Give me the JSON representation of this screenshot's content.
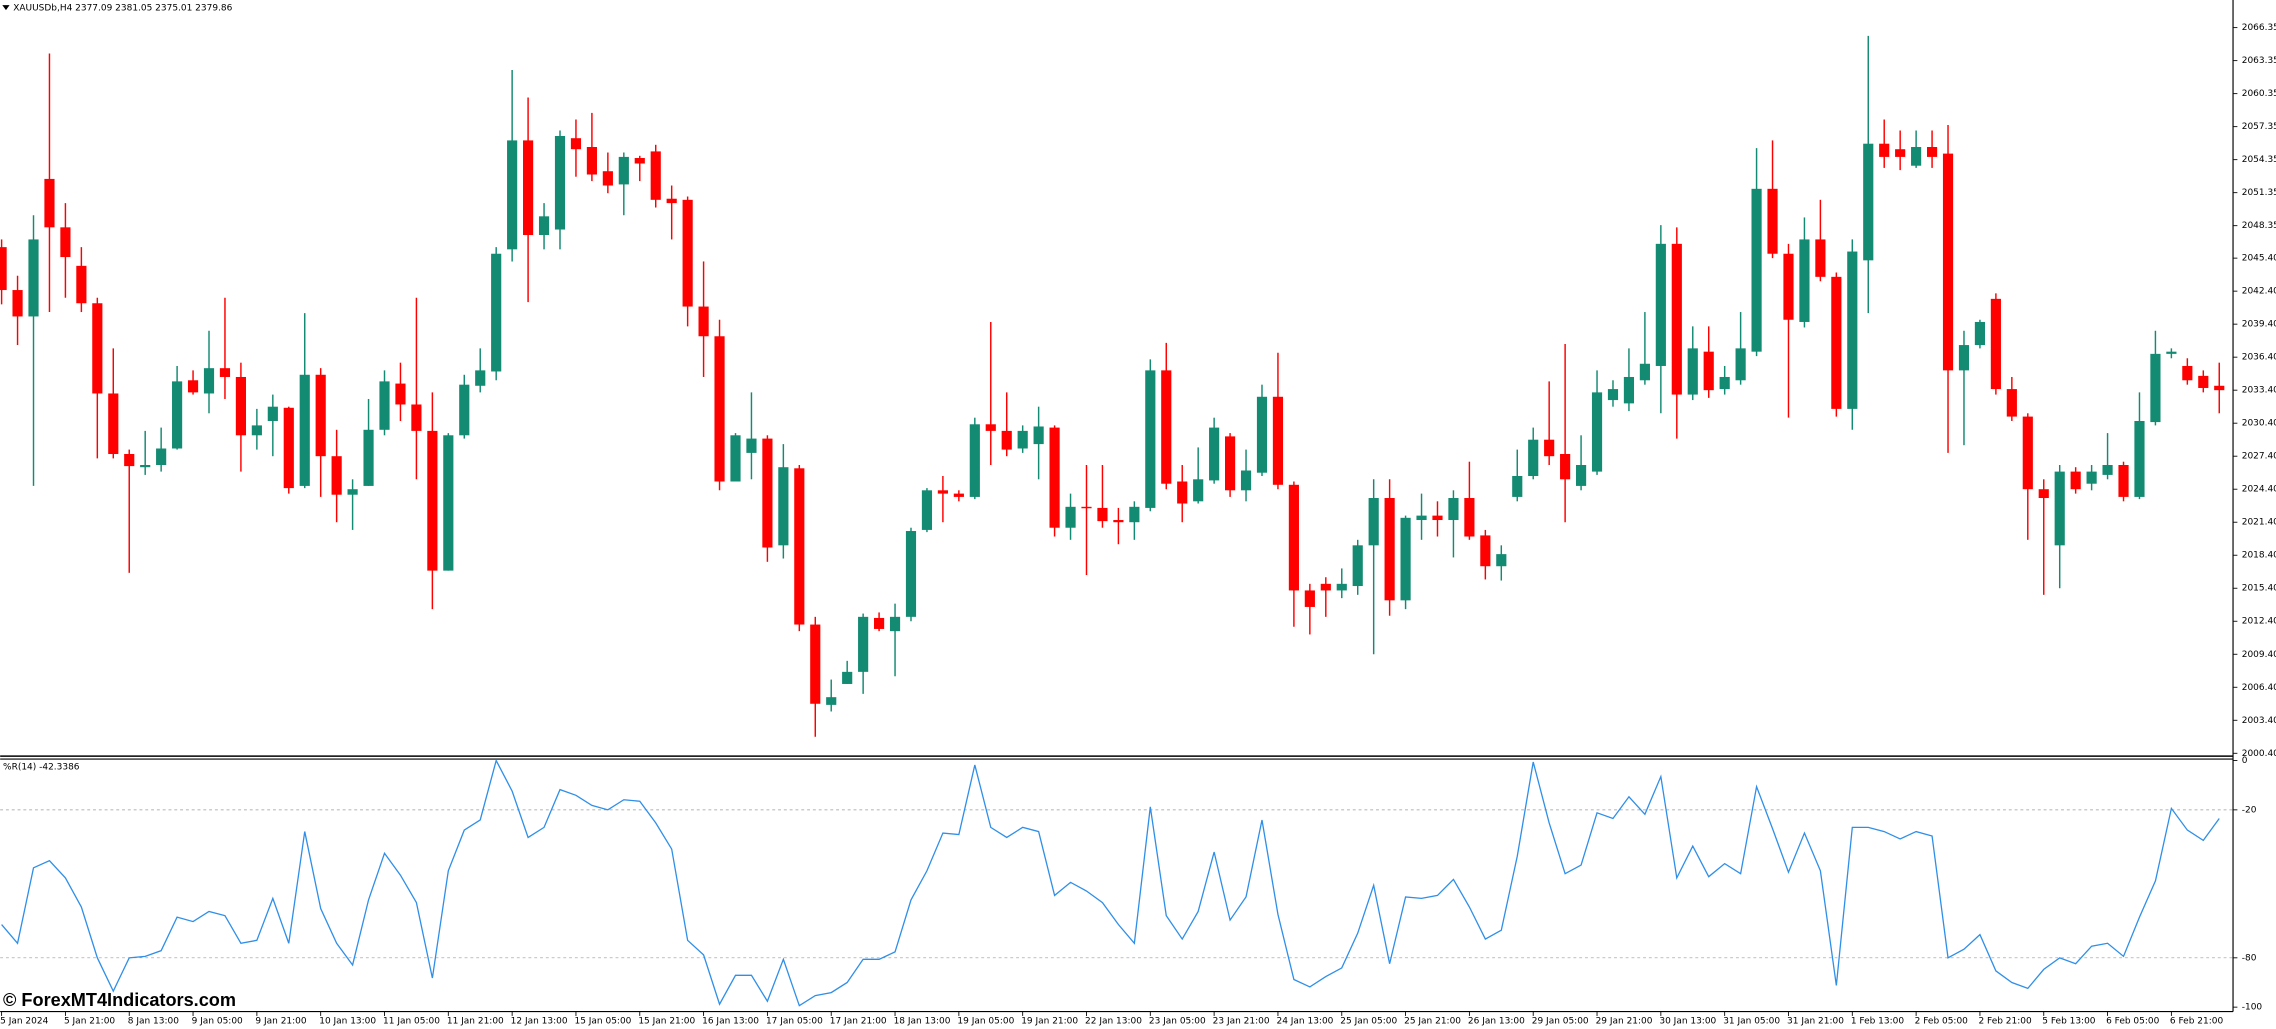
{
  "chart_data": [
    {
      "type": "candlestick",
      "title": "XAUUSDb,H4  2377.09 2381.05 2375.01 2379.86",
      "watermark": "© ForexMT4Indicators.com",
      "up_color": "#138a72",
      "down_color": "#ff0000",
      "categories": [
        "5 Jan 2024",
        null,
        null,
        null,
        "5 Jan 21:00",
        null,
        null,
        null,
        "8 Jan 13:00",
        null,
        null,
        null,
        "9 Jan 05:00",
        null,
        null,
        null,
        "9 Jan 21:00",
        null,
        null,
        null,
        "10 Jan 13:00",
        null,
        null,
        null,
        "11 Jan 05:00",
        null,
        null,
        null,
        "11 Jan 21:00",
        null,
        null,
        null,
        "12 Jan 13:00",
        null,
        null,
        null,
        "15 Jan 05:00",
        null,
        null,
        null,
        "15 Jan 21:00",
        null,
        null,
        null,
        "16 Jan 13:00",
        null,
        null,
        null,
        "17 Jan 05:00",
        null,
        null,
        null,
        "17 Jan 21:00",
        null,
        null,
        null,
        "18 Jan 13:00",
        null,
        null,
        null,
        "19 Jan 05:00",
        null,
        null,
        null,
        "19 Jan 21:00",
        null,
        null,
        null,
        "22 Jan 13:00",
        null,
        null,
        null,
        "23 Jan 05:00",
        null,
        null,
        null,
        "23 Jan 21:00",
        null,
        null,
        null,
        "24 Jan 13:00",
        null,
        null,
        null,
        "25 Jan 05:00",
        null,
        null,
        null,
        "25 Jan 21:00",
        null,
        null,
        null,
        "26 Jan 13:00",
        null,
        null,
        null,
        "29 Jan 05:00",
        null,
        null,
        null,
        "29 Jan 21:00",
        null,
        null,
        null,
        "30 Jan 13:00",
        null,
        null,
        null,
        "31 Jan 05:00",
        null,
        null,
        null,
        "31 Jan 21:00",
        null,
        null,
        null,
        "1 Feb 13:00",
        null,
        null,
        null,
        "2 Feb 05:00",
        null,
        null,
        null,
        "2 Feb 21:00",
        null,
        null,
        null,
        "5 Feb 13:00",
        null,
        null,
        null,
        "6 Feb 05:00",
        null,
        null,
        null,
        "6 Feb 21:00",
        null,
        null,
        null
      ],
      "open": [
        2046.4,
        2042.5,
        2040.1,
        2052.6,
        2048.2,
        2044.7,
        2041.3,
        2033.1,
        2027.6,
        2026.4,
        2026.6,
        2028.1,
        2034.3,
        2033.1,
        2035.4,
        2034.6,
        2029.3,
        2030.6,
        2031.8,
        2024.7,
        2034.8,
        2027.4,
        2023.9,
        2024.7,
        2029.8,
        2034.0,
        2032.1,
        2029.7,
        2017.0,
        2029.3,
        2033.8,
        2035.1,
        2046.2,
        2056.1,
        2047.5,
        2048.0,
        2056.3,
        2055.5,
        2053.3,
        2052.1,
        2054.5,
        2055.1,
        2050.8,
        2050.7,
        2041.0,
        2038.3,
        2025.1,
        2027.7,
        2029.0,
        2019.3,
        2026.3,
        2012.1,
        2004.8,
        2006.7,
        2007.8,
        2012.7,
        2011.5,
        2012.8,
        2020.7,
        2024.3,
        2024.0,
        2023.7,
        2030.3,
        2029.7,
        2028.1,
        2028.5,
        2030.0,
        2020.9,
        2022.8,
        2022.7,
        2021.6,
        2021.4,
        2022.7,
        2035.2,
        2025.1,
        2023.3,
        2025.2,
        2029.2,
        2024.3,
        2025.9,
        2032.8,
        2024.8,
        2015.2,
        2015.8,
        2015.2,
        2015.6,
        2019.3,
        2023.6,
        2014.3,
        2021.6,
        2022.0,
        2021.6,
        2023.6,
        2020.2,
        2017.4,
        2023.7,
        2025.6,
        2028.9,
        2027.6,
        2024.7,
        2026.0,
        2032.5,
        2032.2,
        2034.3,
        2035.6,
        2046.7,
        2033.0,
        2036.9,
        2033.5,
        2034.3,
        2036.9,
        2051.7,
        2045.8,
        2039.6,
        2047.1,
        2043.7,
        2031.7,
        2045.2,
        2055.8,
        2055.3,
        2053.8,
        2055.5,
        2054.9,
        2035.2,
        2037.5,
        2041.7,
        2033.5,
        2031.0,
        2024.4,
        2019.3,
        2026.0,
        2024.9,
        2025.7,
        2026.6,
        2023.7,
        2030.5,
        2036.7,
        2035.6,
        2034.7,
        2033.8
      ],
      "high": [
        2047.1,
        2043.8,
        2049.3,
        2064.0,
        2050.4,
        2046.4,
        2041.8,
        2037.2,
        2028.0,
        2029.7,
        2030.0,
        2035.6,
        2035.2,
        2038.8,
        2041.8,
        2035.9,
        2031.7,
        2033.0,
        2031.9,
        2040.4,
        2035.4,
        2029.8,
        2025.3,
        2032.6,
        2035.2,
        2035.9,
        2041.8,
        2033.2,
        2029.5,
        2034.8,
        2037.2,
        2046.4,
        2062.5,
        2060.0,
        2050.4,
        2057.0,
        2058.0,
        2058.6,
        2055.0,
        2055.0,
        2054.7,
        2055.7,
        2052.0,
        2051.0,
        2045.1,
        2039.8,
        2029.5,
        2033.2,
        2029.3,
        2028.5,
        2026.6,
        2012.8,
        2007.1,
        2008.8,
        2013.1,
        2013.2,
        2014.0,
        2020.9,
        2024.5,
        2025.6,
        2024.3,
        2030.9,
        2039.6,
        2033.2,
        2030.2,
        2031.9,
        2030.2,
        2024.0,
        2026.6,
        2026.6,
        2022.7,
        2023.3,
        2036.2,
        2037.7,
        2026.6,
        2028.2,
        2030.9,
        2029.5,
        2028.0,
        2033.9,
        2036.8,
        2025.1,
        2015.8,
        2016.4,
        2017.2,
        2019.8,
        2025.3,
        2025.3,
        2022.0,
        2024.0,
        2023.3,
        2024.3,
        2026.9,
        2020.7,
        2019.3,
        2028.0,
        2030.0,
        2034.2,
        2037.6,
        2029.3,
        2035.2,
        2034.3,
        2037.2,
        2040.5,
        2048.4,
        2048.2,
        2039.2,
        2039.2,
        2035.6,
        2040.5,
        2055.4,
        2056.1,
        2046.7,
        2049.1,
        2050.7,
        2044.1,
        2047.1,
        2065.6,
        2058.0,
        2057.0,
        2057.0,
        2057.0,
        2057.5,
        2038.8,
        2039.8,
        2042.2,
        2034.6,
        2031.3,
        2025.3,
        2026.6,
        2026.4,
        2026.6,
        2029.5,
        2026.9,
        2033.2,
        2038.8,
        2037.2,
        2036.3,
        2035.2,
        2035.9
      ],
      "low": [
        2041.2,
        2037.5,
        2024.7,
        2040.5,
        2041.8,
        2040.5,
        2027.2,
        2027.2,
        2016.8,
        2025.7,
        2026.0,
        2028.0,
        2033.0,
        2031.3,
        2032.6,
        2026.0,
        2028.0,
        2027.4,
        2024.0,
        2024.5,
        2023.7,
        2021.4,
        2020.7,
        2024.7,
        2029.3,
        2030.6,
        2025.3,
        2013.5,
        2017.0,
        2029.0,
        2033.2,
        2034.3,
        2045.1,
        2041.4,
        2046.2,
        2046.2,
        2052.8,
        2052.4,
        2051.3,
        2049.3,
        2052.4,
        2050.0,
        2047.1,
        2039.2,
        2034.6,
        2024.3,
        2025.1,
        2025.3,
        2017.8,
        2018.1,
        2011.5,
        2001.9,
        2004.2,
        2006.7,
        2005.8,
        2011.5,
        2007.4,
        2012.4,
        2020.5,
        2021.4,
        2023.3,
        2023.5,
        2026.6,
        2027.4,
        2027.7,
        2025.3,
        2020.1,
        2019.8,
        2016.6,
        2020.9,
        2019.4,
        2019.8,
        2022.4,
        2024.4,
        2021.4,
        2023.1,
        2024.9,
        2023.7,
        2023.3,
        2025.6,
        2024.4,
        2011.9,
        2011.2,
        2012.8,
        2014.5,
        2014.8,
        2009.4,
        2012.9,
        2013.5,
        2019.8,
        2020.1,
        2018.2,
        2019.8,
        2016.2,
        2016.1,
        2023.3,
        2025.3,
        2026.6,
        2021.4,
        2024.3,
        2025.7,
        2031.9,
        2031.5,
        2033.9,
        2031.3,
        2029.0,
        2032.5,
        2032.7,
        2033.0,
        2033.9,
        2036.5,
        2045.4,
        2030.9,
        2039.1,
        2043.3,
        2031.0,
        2029.8,
        2040.4,
        2053.6,
        2053.4,
        2053.6,
        2053.6,
        2027.7,
        2028.4,
        2037.2,
        2033.0,
        2030.6,
        2019.8,
        2014.8,
        2015.4,
        2024.0,
        2024.3,
        2025.3,
        2023.3,
        2023.5,
        2030.2,
        2036.3,
        2033.9,
        2033.2,
        2031.3
      ],
      "close": [
        2042.5,
        2040.1,
        2047.1,
        2048.2,
        2045.5,
        2041.3,
        2033.1,
        2027.6,
        2026.5,
        2026.6,
        2028.1,
        2034.2,
        2033.2,
        2035.4,
        2034.6,
        2029.3,
        2030.2,
        2031.9,
        2024.5,
        2034.8,
        2027.4,
        2023.9,
        2024.4,
        2029.8,
        2034.2,
        2032.1,
        2029.7,
        2017.0,
        2029.3,
        2033.9,
        2035.2,
        2045.8,
        2056.1,
        2047.5,
        2049.2,
        2056.5,
        2055.3,
        2053.0,
        2052.0,
        2054.6,
        2054.0,
        2050.7,
        2050.4,
        2041.0,
        2038.3,
        2025.1,
        2029.3,
        2029.0,
        2019.1,
        2026.4,
        2012.1,
        2004.9,
        2005.5,
        2007.8,
        2012.8,
        2011.7,
        2012.8,
        2020.6,
        2024.3,
        2024.0,
        2023.7,
        2030.3,
        2029.7,
        2028.0,
        2029.7,
        2030.1,
        2020.9,
        2022.8,
        2022.7,
        2021.5,
        2021.4,
        2022.8,
        2035.2,
        2024.9,
        2023.1,
        2025.3,
        2030.0,
        2024.3,
        2026.1,
        2032.8,
        2024.8,
        2015.2,
        2013.7,
        2015.2,
        2015.8,
        2019.3,
        2023.6,
        2014.3,
        2021.8,
        2022.0,
        2021.6,
        2023.6,
        2020.1,
        2017.4,
        2018.5,
        2025.6,
        2028.9,
        2027.4,
        2025.3,
        2026.6,
        2033.2,
        2033.5,
        2034.6,
        2035.8,
        2046.7,
        2033.0,
        2037.2,
        2033.4,
        2034.6,
        2037.2,
        2051.7,
        2045.8,
        2039.8,
        2047.1,
        2043.7,
        2031.7,
        2046.0,
        2055.8,
        2054.6,
        2054.6,
        2055.5,
        2054.6,
        2035.2,
        2037.5,
        2039.6,
        2033.5,
        2031.0,
        2024.4,
        2023.6,
        2026.0,
        2024.4,
        2026.0,
        2026.6,
        2023.7,
        2030.6,
        2036.7,
        2036.9,
        2034.3,
        2033.6,
        2033.4
      ],
      "ylim": [
        2000.14,
        2068.86
      ],
      "yticks": [
        {
          "value": 2066.35,
          "label": "2066.35"
        },
        {
          "value": 2063.35,
          "label": "2063.35"
        },
        {
          "value": 2060.35,
          "label": "2060.35"
        },
        {
          "value": 2057.35,
          "label": "2057.35"
        },
        {
          "value": 2054.35,
          "label": "2054.35"
        },
        {
          "value": 2051.35,
          "label": "2051.35"
        },
        {
          "value": 2048.35,
          "label": "2048.35"
        },
        {
          "value": 2045.4,
          "label": "2045.40"
        },
        {
          "value": 2042.4,
          "label": "2042.40"
        },
        {
          "value": 2039.4,
          "label": "2039.40"
        },
        {
          "value": 2036.4,
          "label": "2036.40"
        },
        {
          "value": 2033.4,
          "label": "2033.40"
        },
        {
          "value": 2030.4,
          "label": "2030.40"
        },
        {
          "value": 2027.4,
          "label": "2027.40"
        },
        {
          "value": 2024.4,
          "label": "2024.40"
        },
        {
          "value": 2021.4,
          "label": "2021.40"
        },
        {
          "value": 2018.4,
          "label": "2018.40"
        },
        {
          "value": 2015.4,
          "label": "2015.40"
        },
        {
          "value": 2012.4,
          "label": "2012.40"
        },
        {
          "value": 2009.4,
          "label": "2009.40"
        },
        {
          "value": 2006.4,
          "label": "2006.40"
        },
        {
          "value": 2003.4,
          "label": "2003.40"
        },
        {
          "value": 2000.4,
          "label": "2000.40"
        }
      ]
    },
    {
      "type": "line",
      "title": "%R(14) -42.3386",
      "color": "#2f8fe8",
      "values": [
        -66.5,
        -74.1,
        -43.5,
        -40.6,
        -47.6,
        -59.4,
        -80.0,
        -93.5,
        -80.0,
        -79.4,
        -77.1,
        -63.5,
        -65.3,
        -61.2,
        -62.9,
        -74.1,
        -72.9,
        -55.9,
        -74.1,
        -28.8,
        -60.0,
        -74.1,
        -82.9,
        -56.5,
        -37.6,
        -46.5,
        -57.6,
        -88.2,
        -44.7,
        -28.2,
        -24.1,
        0,
        -12.4,
        -31.2,
        -27.1,
        -11.8,
        -14.1,
        -18.2,
        -20.0,
        -15.9,
        -16.5,
        -25.3,
        -35.9,
        -72.9,
        -78.8,
        -98.8,
        -87.1,
        -87.1,
        -97.6,
        -80.6,
        -99.4,
        -95.3,
        -94.1,
        -90.0,
        -80.6,
        -80.6,
        -77.6,
        -56.5,
        -44.7,
        -29.4,
        -30.0,
        -1.8,
        -27.1,
        -31.2,
        -27.1,
        -28.8,
        -54.7,
        -49.4,
        -52.9,
        -57.6,
        -66.5,
        -74.1,
        -18.8,
        -62.9,
        -72.4,
        -61.2,
        -37.1,
        -64.7,
        -55.3,
        -24.1,
        -62.4,
        -88.8,
        -91.8,
        -87.6,
        -84.1,
        -70.0,
        -50.6,
        -82.4,
        -55.3,
        -55.9,
        -54.7,
        -48.2,
        -59.4,
        -72.4,
        -68.8,
        -38.8,
        -0.6,
        -25.3,
        -45.9,
        -42.4,
        -21.2,
        -23.5,
        -14.7,
        -21.8,
        -6.5,
        -47.6,
        -34.7,
        -47.1,
        -41.8,
        -45.9,
        -10.6,
        -27.6,
        -45.3,
        -29.4,
        -44.7,
        -91.2,
        -27.1,
        -27.1,
        -28.8,
        -31.8,
        -28.8,
        -30.6,
        -80.0,
        -76.5,
        -70.6,
        -85.3,
        -90.0,
        -92.4,
        -84.7,
        -80.0,
        -82.4,
        -75.3,
        -74.1,
        -79.4,
        -63.5,
        -48.8,
        -19.4,
        -28.2,
        -32.4,
        -23.5
      ],
      "ylim": [
        -101.8,
        0.6
      ],
      "yticks": [
        0,
        -20,
        -80,
        -100
      ],
      "levels": [
        -20,
        -80
      ]
    }
  ]
}
